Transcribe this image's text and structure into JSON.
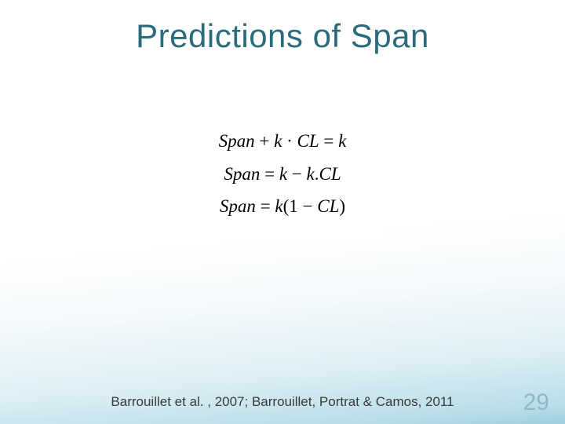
{
  "slide": {
    "title": "Predictions of Span",
    "title_color": "#2a6b7c",
    "title_fontsize": 42,
    "background_gradient": [
      "#ffffff",
      "#ffffff",
      "#f4f9fb",
      "#dceef4",
      "#b9dde8",
      "#9fcfdf"
    ],
    "equations_block": {
      "background": "#ffffff",
      "font_family": "Cambria Math / serif",
      "font_size": 23,
      "color": "#000000",
      "lines": [
        {
          "display": "Span + k · CL = k",
          "latex": "Span + k \\cdot CL = k"
        },
        {
          "display": "Span = k − k.CL",
          "latex": "Span = k - k \\cdot CL"
        },
        {
          "display": "Span = k(1 − CL)",
          "latex": "Span = k(1 - CL)"
        }
      ]
    },
    "citation": "Barrouillet et al. , 2007; Barrouillet, Portrat & Camos, 2011",
    "citation_color": "#3a3a3a",
    "citation_fontsize": 17,
    "page_number": "29",
    "page_number_color": "#8fb9c4",
    "page_number_fontsize": 30
  }
}
